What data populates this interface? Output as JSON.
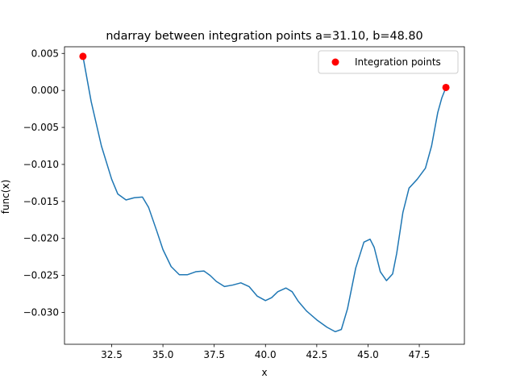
{
  "chart_data": {
    "type": "line",
    "title": "ndarray between integration points a=31.10, b=48.80",
    "xlabel": "x",
    "ylabel": "func(x)",
    "xlim": [
      30.2,
      49.7
    ],
    "ylim": [
      -0.0343,
      0.0059
    ],
    "xticks": [
      32.5,
      35.0,
      37.5,
      40.0,
      42.5,
      45.0,
      47.5
    ],
    "xtick_labels": [
      "32.5",
      "35.0",
      "37.5",
      "40.0",
      "42.5",
      "45.0",
      "47.5"
    ],
    "yticks": [
      0.005,
      0.0,
      -0.005,
      -0.01,
      -0.015,
      -0.02,
      -0.025,
      -0.03
    ],
    "ytick_labels": [
      "0.005",
      "0.000",
      "−0.005",
      "−0.010",
      "−0.015",
      "−0.020",
      "−0.025",
      "−0.030"
    ],
    "grid": false,
    "legend_position": "top-right",
    "series": [
      {
        "kind": "line",
        "color": "#1f77b4",
        "x": [
          31.1,
          31.5,
          32.0,
          32.5,
          32.8,
          33.2,
          33.6,
          34.0,
          34.3,
          34.7,
          35.0,
          35.4,
          35.8,
          36.2,
          36.6,
          37.0,
          37.3,
          37.6,
          38.0,
          38.4,
          38.8,
          39.2,
          39.6,
          40.0,
          40.3,
          40.6,
          41.0,
          41.3,
          41.6,
          42.0,
          42.5,
          43.0,
          43.4,
          43.7,
          44.0,
          44.4,
          44.8,
          45.1,
          45.3,
          45.6,
          45.9,
          46.2,
          46.4,
          46.7,
          47.0,
          47.4,
          47.8,
          48.1,
          48.4,
          48.6,
          48.8
        ],
        "y": [
          0.0046,
          -0.0015,
          -0.0075,
          -0.012,
          -0.014,
          -0.0148,
          -0.0145,
          -0.0144,
          -0.0158,
          -0.019,
          -0.0215,
          -0.0238,
          -0.0249,
          -0.0249,
          -0.0245,
          -0.0244,
          -0.025,
          -0.0258,
          -0.0265,
          -0.0263,
          -0.026,
          -0.0265,
          -0.0278,
          -0.0284,
          -0.028,
          -0.0272,
          -0.0267,
          -0.0272,
          -0.0285,
          -0.0298,
          -0.031,
          -0.032,
          -0.0326,
          -0.0323,
          -0.0295,
          -0.024,
          -0.0205,
          -0.0201,
          -0.0212,
          -0.0245,
          -0.0257,
          -0.0248,
          -0.022,
          -0.0165,
          -0.0132,
          -0.012,
          -0.0105,
          -0.0075,
          -0.003,
          -0.001,
          0.0004
        ]
      },
      {
        "kind": "scatter",
        "name": "Integration points",
        "color": "#ff0000",
        "x": [
          31.1,
          48.8
        ],
        "y": [
          0.0046,
          0.0004
        ]
      }
    ]
  }
}
